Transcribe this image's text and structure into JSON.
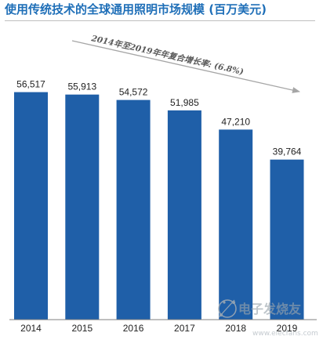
{
  "title": "使用传统技术的全球通用照明市场规模 (百万美元)",
  "watermark": {
    "text": "电子发烧友",
    "url": "www.elecfans.com",
    "icon": "network-logo-icon"
  },
  "colors": {
    "bar": "#1f5fa8",
    "title": "#1f6fb8",
    "arrow": "#a6a6a6",
    "axis": "#7f7f7f"
  },
  "chart_data": {
    "type": "bar",
    "title": "使用传统技术的全球通用照明市场规模 (百万美元)",
    "categories": [
      "2014",
      "2015",
      "2016",
      "2017",
      "2018",
      "2019"
    ],
    "values": [
      56517,
      55913,
      54572,
      51985,
      47210,
      39764
    ],
    "value_labels": [
      "56,517",
      "55,913",
      "54,572",
      "51,985",
      "47,210",
      "39,764"
    ],
    "annotation": "2014年至2019年年复合增长率: (6.8%)",
    "ylim": [
      0,
      65000
    ],
    "grid": false,
    "legend": "none"
  }
}
